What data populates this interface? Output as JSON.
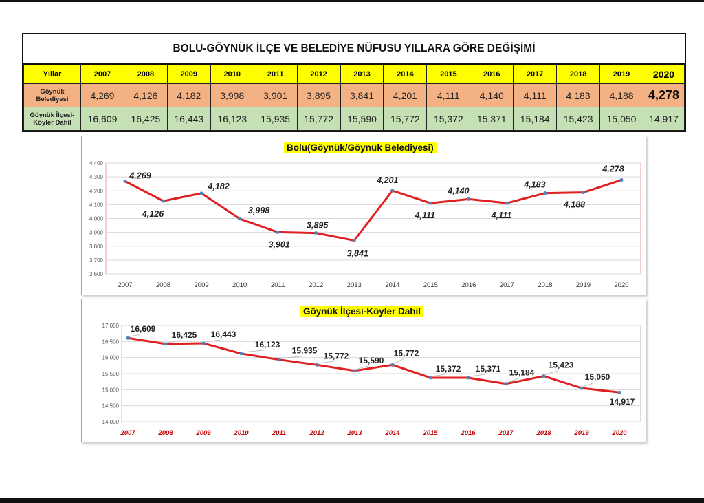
{
  "table": {
    "title": "BOLU-GÖYNÜK İLÇE VE BELEDİYE NÜFUSU YILLARA GÖRE DEĞİŞİMİ",
    "header_label": "Yıllar",
    "years": [
      "2007",
      "2008",
      "2009",
      "2010",
      "2011",
      "2012",
      "2013",
      "2014",
      "2015",
      "2016",
      "2017",
      "2018",
      "2019",
      "2020"
    ],
    "rows": [
      {
        "label_line1": "Göynük",
        "label_line2": "Belediyesi",
        "values": [
          "4,269",
          "4,126",
          "4,182",
          "3,998",
          "3,901",
          "3,895",
          "3,841",
          "4,201",
          "4,111",
          "4,140",
          "4,111",
          "4,183",
          "4,188",
          "4,278"
        ]
      },
      {
        "label_line1": "Göynük İlçesi-",
        "label_line2": "Köyler Dahil",
        "values": [
          "16,609",
          "16,425",
          "16,443",
          "16,123",
          "15,935",
          "15,772",
          "15,590",
          "15,772",
          "15,372",
          "15,371",
          "15,184",
          "15,423",
          "15,050",
          "14,917"
        ]
      }
    ],
    "colors": {
      "header": "#ffff00",
      "belediye": "#f4b183",
      "ilce": "#c5e0b4"
    }
  },
  "chart_data": [
    {
      "type": "line",
      "title": "Bolu(Göynük/Göynük Belediyesi)",
      "x": [
        "2007",
        "2008",
        "2009",
        "2010",
        "2011",
        "2012",
        "2013",
        "2014",
        "2015",
        "2016",
        "2017",
        "2018",
        "2019",
        "2020"
      ],
      "series": [
        {
          "values": [
            4269,
            4126,
            4182,
            3998,
            3901,
            3895,
            3841,
            4201,
            4111,
            4140,
            4111,
            4183,
            4188,
            4278
          ]
        }
      ],
      "data_labels": [
        "4,269",
        "4,126",
        "4,182",
        "3,998",
        "3,901",
        "3,895",
        "3,841",
        "4,201",
        "4,111",
        "4,140",
        "4,111",
        "4,183",
        "4,188",
        "4,278"
      ],
      "ylim": [
        3600,
        4400
      ],
      "yticks": [
        "3,600",
        "3,700",
        "3,800",
        "3,900",
        "4,000",
        "4,100",
        "4,200",
        "4,300",
        "4,400"
      ],
      "grid": true,
      "line_color": "#e02020",
      "marker_color": "#4f81bd"
    },
    {
      "type": "line",
      "title": "Göynük İlçesi-Köyler Dahil",
      "x": [
        "2007",
        "2008",
        "2009",
        "2010",
        "2011",
        "2012",
        "2013",
        "2014",
        "2015",
        "2016",
        "2017",
        "2018",
        "2019",
        "2020"
      ],
      "series": [
        {
          "values": [
            16609,
            16425,
            16443,
            16123,
            15935,
            15772,
            15590,
            15772,
            15372,
            15371,
            15184,
            15423,
            15050,
            14917
          ]
        }
      ],
      "data_labels": [
        "16,609",
        "16,425",
        "16,443",
        "16,123",
        "15,935",
        "15,772",
        "15,590",
        "15,772",
        "15,372",
        "15,371",
        "15,184",
        "15,423",
        "15,050",
        "14,917"
      ],
      "ylim": [
        14000,
        17000
      ],
      "yticks": [
        "14,000",
        "14,500",
        "15,000",
        "15,500",
        "16,000",
        "16,500",
        "17,000"
      ],
      "grid": true,
      "line_color": "#e02020",
      "marker_color": "#4f81bd",
      "x_tick_color": "#c00000"
    }
  ]
}
